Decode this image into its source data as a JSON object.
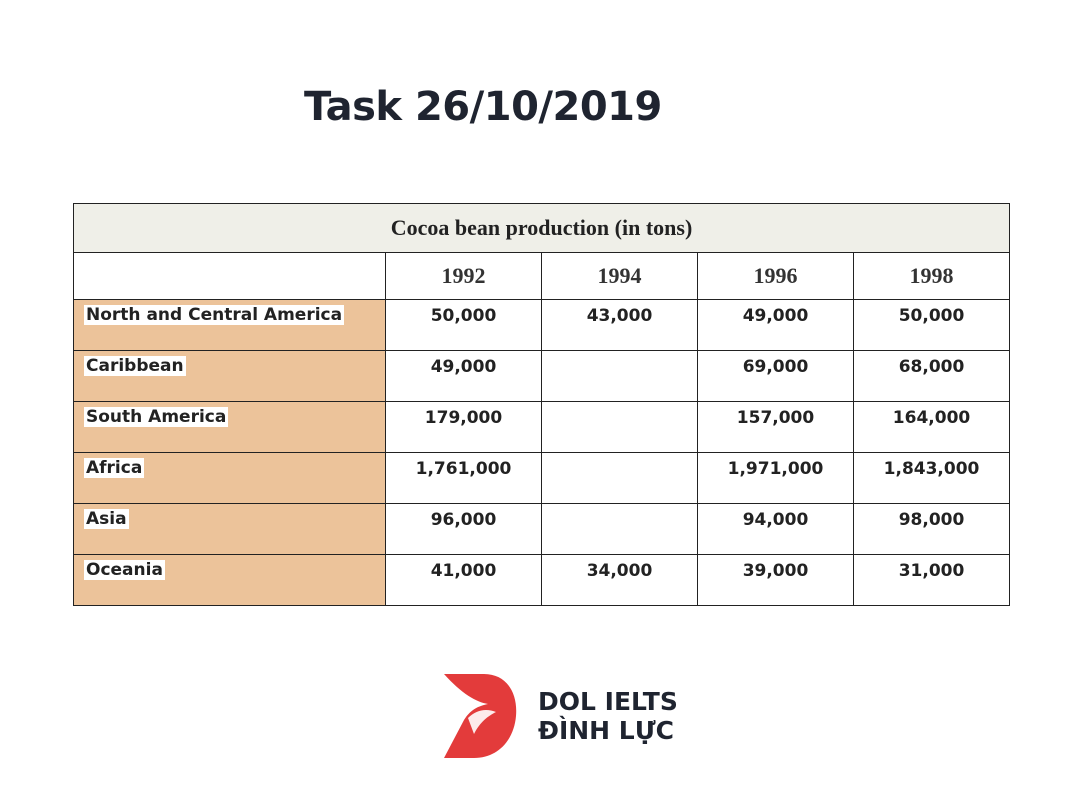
{
  "page": {
    "title": "Task 26/10/2019"
  },
  "chart_data": {
    "type": "table",
    "title": "Cocoa bean production (in tons)",
    "columns": [
      "1992",
      "1994",
      "1996",
      "1998"
    ],
    "rows": [
      {
        "label": "North and Central America",
        "values": [
          "50,000",
          "43,000",
          "49,000",
          "50,000"
        ]
      },
      {
        "label": "Caribbean",
        "values": [
          "49,000",
          "",
          "69,000",
          "68,000"
        ]
      },
      {
        "label": "South America",
        "values": [
          "179,000",
          "",
          "157,000",
          "164,000"
        ]
      },
      {
        "label": "Africa",
        "values": [
          "1,761,000",
          "",
          "1,971,000",
          "1,843,000"
        ]
      },
      {
        "label": "Asia",
        "values": [
          "96,000",
          "",
          "94,000",
          "98,000"
        ]
      },
      {
        "label": "Oceania",
        "values": [
          "41,000",
          "34,000",
          "39,000",
          "31,000"
        ]
      }
    ]
  },
  "logo": {
    "line1": "DOL IELTS",
    "line2": "ĐÌNH LỰC",
    "colors": {
      "mark": "#e33b3b",
      "text": "#1f2430"
    }
  },
  "colors": {
    "label_fill": "#ecc39a",
    "caption_fill": "#efefe8"
  }
}
